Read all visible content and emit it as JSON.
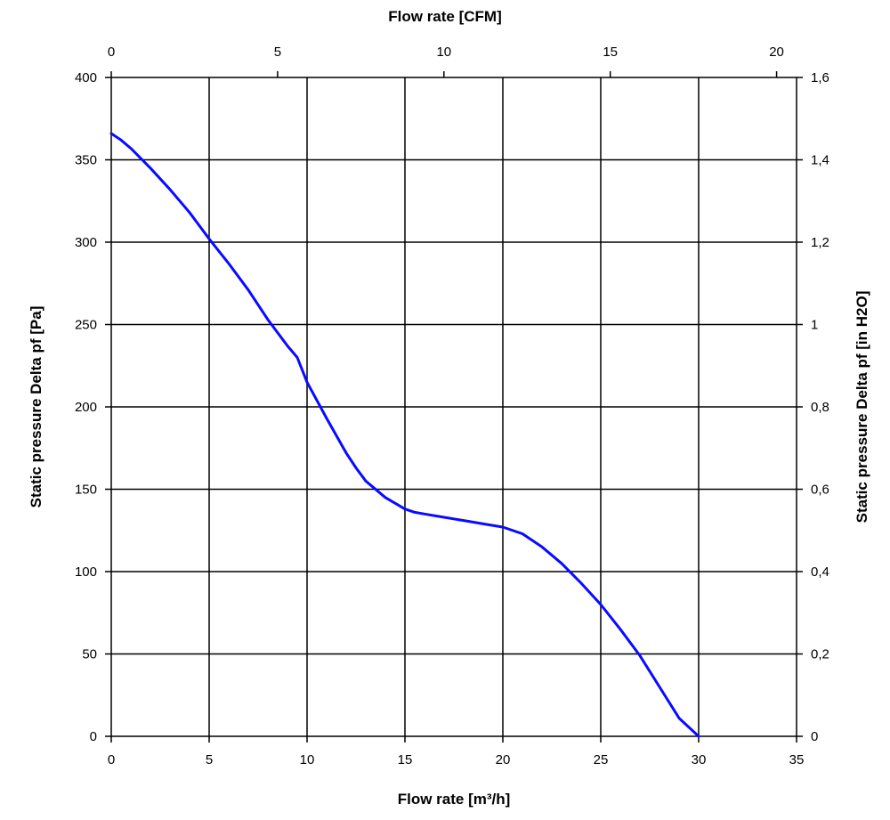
{
  "chart_data": {
    "type": "line",
    "title": "",
    "xlabel": "Flow rate [m³/h]",
    "ylabel": "Static pressure Delta pf [Pa]",
    "x2label": "Flow rate [CFM]",
    "y2label": "Static pressure Delta pf [in H2O]",
    "xlim": [
      0,
      35
    ],
    "ylim": [
      0,
      400
    ],
    "x2lim": [
      0,
      20.6
    ],
    "y2lim": [
      0,
      1.6
    ],
    "grid": true,
    "x_ticks": [
      "0",
      "5",
      "10",
      "15",
      "20",
      "25",
      "30",
      "35"
    ],
    "y_ticks": [
      "0",
      "50",
      "100",
      "150",
      "200",
      "250",
      "300",
      "350",
      "400"
    ],
    "x2_ticks": [
      {
        "value": 0,
        "label": "0"
      },
      {
        "value": 5,
        "label": "5"
      },
      {
        "value": 10,
        "label": "10"
      },
      {
        "value": 15,
        "label": "15"
      },
      {
        "value": 20,
        "label": "20"
      }
    ],
    "y2_ticks": [
      "0",
      "0,2",
      "0,4",
      "0,6",
      "0,8",
      "1",
      "1,2",
      "1,4",
      "1,6"
    ],
    "series": [
      {
        "color": "#0a0aff",
        "x": [
          0,
          0.5,
          1,
          2,
          3,
          4,
          5,
          6,
          7,
          8,
          9,
          9.5,
          10,
          11,
          12,
          12.5,
          13,
          14,
          15,
          15.5,
          16,
          17,
          18,
          19,
          20,
          21,
          22,
          23,
          24,
          25,
          26,
          27,
          28,
          29,
          30
        ],
        "y": [
          366,
          362,
          357,
          345,
          332,
          318,
          302,
          287,
          271,
          253,
          237,
          230,
          215,
          193,
          172,
          163,
          155,
          145,
          138,
          136,
          135,
          133,
          131,
          129,
          127,
          123,
          115,
          105,
          93,
          80,
          65,
          49,
          30,
          11,
          0
        ]
      }
    ]
  }
}
